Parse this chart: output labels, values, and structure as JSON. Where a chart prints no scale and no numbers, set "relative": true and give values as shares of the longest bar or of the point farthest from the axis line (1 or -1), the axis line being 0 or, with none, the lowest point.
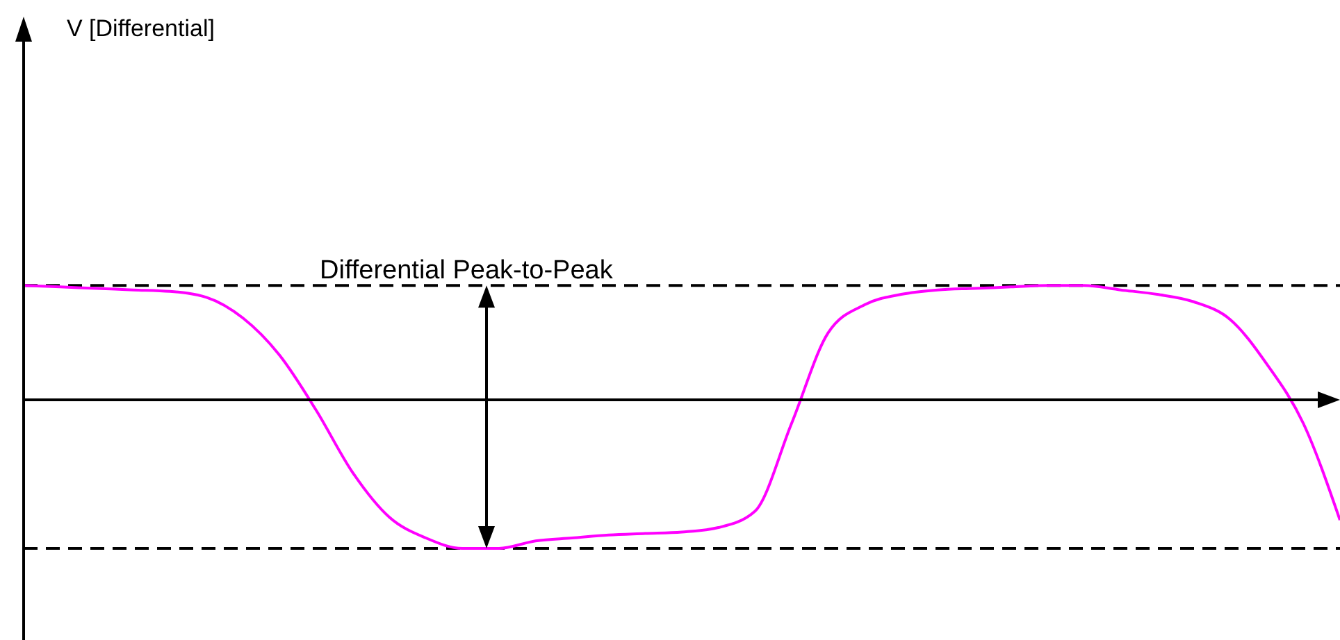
{
  "chart_data": {
    "type": "line",
    "relative": true,
    "marker": "none",
    "annotations": [
      "V [Differential]",
      "Differential Peak-to-Peak"
    ],
    "categories": [
      null,
      null,
      null,
      null,
      null,
      null,
      null,
      null,
      null,
      null,
      null,
      null,
      null,
      null,
      null,
      null,
      null,
      null,
      null,
      null,
      null,
      null,
      null,
      null,
      null,
      null,
      null,
      null,
      null,
      null,
      null,
      null,
      null,
      null,
      null,
      null,
      null
    ],
    "series": [
      {
        "color": "#ff00ff",
        "line_style": "solid",
        "values": [
          0.77,
          0.76,
          0.75,
          0.74,
          0.73,
          0.69,
          0.55,
          0.3,
          -0.07,
          -0.49,
          -0.79,
          -0.93,
          -1.0,
          -1.0,
          -0.95,
          -0.93,
          -0.91,
          -0.9,
          -0.89,
          -0.86,
          -0.75,
          -0.16,
          0.45,
          0.64,
          0.71,
          0.74,
          0.75,
          0.76,
          0.77,
          0.77,
          0.74,
          0.71,
          0.66,
          0.54,
          0.24,
          -0.16,
          -0.81
        ]
      }
    ],
    "ref_lines": [
      {
        "axis": "y",
        "value": 0.77,
        "color": "#000000",
        "line_style": "dashed"
      },
      {
        "axis": "y",
        "value": -1.0,
        "color": "#000000",
        "line_style": "dashed"
      }
    ]
  }
}
